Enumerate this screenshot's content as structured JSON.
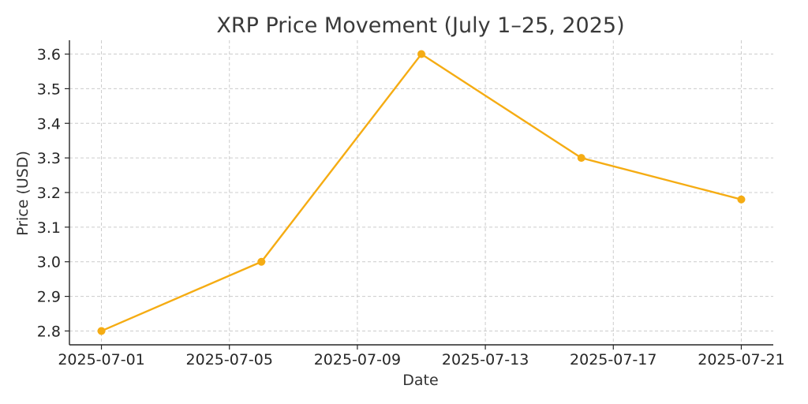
{
  "chart_data": {
    "type": "line",
    "title": "XRP Price Movement (July 1–25, 2025)",
    "xlabel": "Date",
    "ylabel": "Price (USD)",
    "x": [
      "2025-07-01",
      "2025-07-06",
      "2025-07-11",
      "2025-07-16",
      "2025-07-21"
    ],
    "series": [
      {
        "values": [
          2.8,
          3.0,
          3.6,
          3.3,
          3.18
        ],
        "color": "#f5ac13"
      }
    ],
    "xlim": [
      "2025-06-30",
      "2025-07-22"
    ],
    "ylim": [
      2.76,
      3.64
    ],
    "xticks": [
      "2025-07-01",
      "2025-07-05",
      "2025-07-09",
      "2025-07-13",
      "2025-07-17",
      "2025-07-21"
    ],
    "yticks": [
      2.8,
      2.9,
      3.0,
      3.1,
      3.2,
      3.3,
      3.4,
      3.5,
      3.6
    ],
    "grid": true,
    "marker": "circle"
  }
}
